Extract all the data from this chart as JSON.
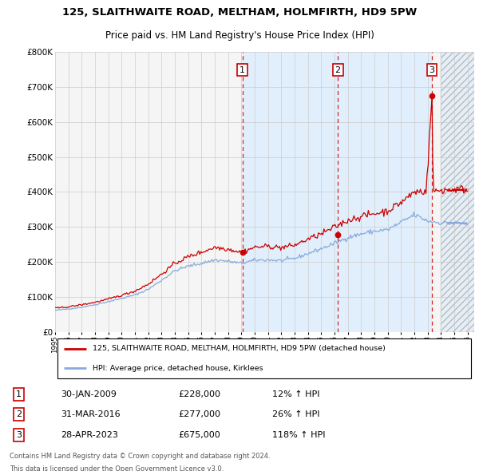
{
  "title1": "125, SLAITHWAITE ROAD, MELTHAM, HOLMFIRTH, HD9 5PW",
  "title2": "Price paid vs. HM Land Registry's House Price Index (HPI)",
  "ylim": [
    0,
    800000
  ],
  "yticks": [
    0,
    100000,
    200000,
    300000,
    400000,
    500000,
    600000,
    700000,
    800000
  ],
  "ytick_labels": [
    "£0",
    "£100K",
    "£200K",
    "£300K",
    "£400K",
    "£500K",
    "£600K",
    "£700K",
    "£800K"
  ],
  "xmin": 1995.0,
  "xmax": 2026.5,
  "transaction_color": "#cc0000",
  "hpi_line_color": "#88aadd",
  "background_color": "#ffffff",
  "plot_bg_color": "#f5f5f5",
  "grid_color": "#cccccc",
  "shade_color": "#ddeeff",
  "purchases": [
    {
      "num": 1,
      "date": "30-JAN-2009",
      "price": 228000,
      "pct": "12%",
      "x": 2009.08
    },
    {
      "num": 2,
      "date": "31-MAR-2016",
      "price": 277000,
      "pct": "26%",
      "x": 2016.25
    },
    {
      "num": 3,
      "date": "28-APR-2023",
      "price": 675000,
      "pct": "118%",
      "x": 2023.33
    }
  ],
  "legend_line1": "125, SLAITHWAITE ROAD, MELTHAM, HOLMFIRTH, HD9 5PW (detached house)",
  "legend_line2": "HPI: Average price, detached house, Kirklees",
  "footer1": "Contains HM Land Registry data © Crown copyright and database right 2024.",
  "footer2": "This data is licensed under the Open Government Licence v3.0."
}
